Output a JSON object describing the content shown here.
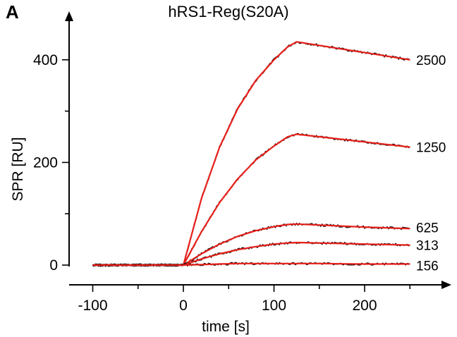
{
  "panel_letter": "A",
  "chart_data": {
    "type": "line",
    "title": "hRS1-Reg(S20A)",
    "xlabel": "time [s]",
    "ylabel": "SPR [RU]",
    "xlim": [
      -100,
      250
    ],
    "ylim": [
      0,
      440
    ],
    "x_ticks": [
      -100,
      0,
      100,
      200
    ],
    "x_tick_labels": [
      "-100",
      "0",
      "100",
      "200"
    ],
    "y_ticks": [
      0,
      200,
      400
    ],
    "y_tick_labels": [
      "0",
      "200",
      "400"
    ],
    "grid": false,
    "legend": "none (series labelled at line ends)",
    "colors": {
      "data": "#111111",
      "fit": "#e8201a"
    },
    "series": [
      {
        "name": "2500",
        "x": [
          -100,
          0,
          20,
          40,
          60,
          80,
          100,
          115,
          125,
          150,
          200,
          250
        ],
        "values": [
          0,
          0,
          130,
          230,
          305,
          360,
          400,
          425,
          435,
          428,
          414,
          400
        ]
      },
      {
        "name": "1250",
        "x": [
          -100,
          0,
          20,
          40,
          60,
          80,
          100,
          115,
          125,
          150,
          200,
          250
        ],
        "values": [
          0,
          0,
          65,
          122,
          168,
          205,
          232,
          250,
          255,
          250,
          240,
          230
        ]
      },
      {
        "name": "625",
        "x": [
          -100,
          0,
          20,
          40,
          60,
          80,
          100,
          115,
          125,
          150,
          200,
          250
        ],
        "values": [
          0,
          0,
          22,
          41,
          56,
          67,
          75,
          79,
          80,
          78,
          74,
          71
        ]
      },
      {
        "name": "313",
        "x": [
          -100,
          0,
          20,
          40,
          60,
          80,
          100,
          115,
          125,
          150,
          200,
          250
        ],
        "values": [
          0,
          0,
          12,
          22,
          30,
          36,
          41,
          43,
          44,
          43,
          41,
          39
        ]
      },
      {
        "name": "156",
        "x": [
          -100,
          0,
          20,
          40,
          60,
          80,
          100,
          115,
          125,
          150,
          200,
          250
        ],
        "values": [
          0,
          0,
          1,
          2,
          3,
          3,
          3,
          3,
          3,
          3,
          2,
          2
        ]
      }
    ]
  }
}
